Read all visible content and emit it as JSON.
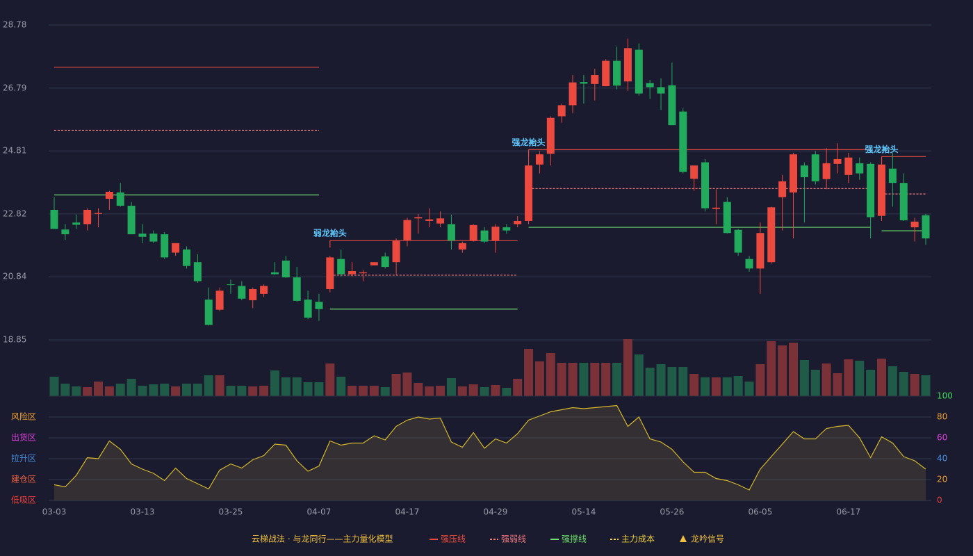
{
  "chart_data": [
    {
      "type": "candlestick",
      "x": [
        "03-03",
        null,
        null,
        null,
        null,
        null,
        null,
        null,
        "03-13",
        null,
        null,
        null,
        null,
        null,
        null,
        null,
        "03-25",
        null,
        null,
        null,
        null,
        null,
        null,
        null,
        "04-07",
        null,
        null,
        null,
        null,
        null,
        null,
        null,
        "04-17",
        null,
        null,
        null,
        null,
        null,
        null,
        null,
        "04-29",
        null,
        null,
        null,
        null,
        null,
        null,
        null,
        "05-14",
        null,
        null,
        null,
        null,
        null,
        null,
        null,
        "05-26",
        null,
        null,
        null,
        null,
        null,
        null,
        null,
        "06-05",
        null,
        null,
        null,
        null,
        null,
        null,
        null,
        "06-17",
        null,
        null,
        null,
        null,
        null,
        null,
        null
      ],
      "open": [
        22.95,
        22.33,
        22.55,
        22.5,
        22.82,
        23.3,
        23.5,
        23.08,
        22.2,
        22.2,
        22.18,
        21.6,
        21.7,
        21.3,
        20.12,
        19.8,
        20.6,
        20.55,
        20.1,
        20.3,
        20.98,
        21.35,
        20.82,
        20.12,
        20.05,
        20.45,
        21.4,
        20.92,
        20.95,
        21.2,
        21.48,
        21.3,
        22.0,
        22.68,
        22.6,
        22.52,
        22.5,
        21.7,
        21.98,
        22.3,
        21.98,
        22.4,
        22.5,
        22.6,
        24.38,
        24.72,
        25.9,
        26.25,
        26.98,
        26.92,
        26.85,
        27.65,
        27.0,
        28.0,
        26.95,
        26.82,
        26.88,
        26.05,
        23.93,
        24.45,
        22.98,
        23.2,
        22.32,
        21.4,
        21.1,
        21.3,
        23.35,
        23.5,
        24.35,
        24.7,
        23.92,
        24.4,
        24.05,
        24.42,
        24.4,
        22.76,
        24.25,
        23.8,
        22.4,
        22.78
      ],
      "high": [
        23.35,
        22.5,
        22.8,
        23.0,
        23.0,
        23.55,
        23.8,
        23.2,
        22.5,
        22.3,
        22.25,
        21.9,
        21.8,
        21.55,
        20.5,
        20.5,
        20.75,
        20.7,
        20.5,
        20.6,
        21.3,
        21.5,
        21.15,
        20.4,
        20.3,
        21.5,
        21.7,
        21.3,
        21.05,
        21.3,
        21.6,
        22.05,
        22.7,
        22.82,
        23.0,
        22.9,
        22.8,
        21.95,
        22.5,
        22.4,
        22.5,
        22.5,
        22.75,
        24.7,
        24.8,
        25.9,
        26.3,
        27.2,
        27.2,
        27.4,
        27.7,
        28.1,
        28.35,
        28.2,
        27.05,
        27.1,
        27.6,
        26.15,
        24.35,
        24.55,
        23.6,
        23.35,
        22.35,
        21.5,
        22.55,
        23.05,
        24.05,
        24.75,
        24.45,
        24.8,
        24.9,
        25.05,
        24.75,
        24.6,
        24.45,
        24.5,
        24.75,
        24.1,
        22.7,
        22.82
      ],
      "low": [
        22.35,
        22.0,
        22.35,
        22.3,
        22.4,
        22.95,
        23.05,
        22.2,
        21.9,
        21.9,
        21.4,
        21.5,
        21.1,
        20.65,
        19.3,
        19.75,
        20.3,
        20.1,
        19.85,
        20.2,
        20.9,
        20.8,
        20.05,
        19.5,
        19.45,
        20.35,
        20.85,
        20.85,
        20.7,
        21.2,
        21.1,
        20.9,
        21.8,
        22.2,
        22.4,
        22.4,
        21.7,
        21.6,
        21.95,
        21.9,
        21.6,
        22.2,
        22.4,
        22.5,
        24.1,
        24.35,
        25.7,
        26.0,
        26.3,
        26.4,
        26.85,
        26.75,
        26.7,
        26.55,
        26.45,
        26.1,
        25.7,
        24.1,
        23.55,
        22.9,
        22.5,
        22.2,
        21.5,
        21.0,
        20.3,
        21.25,
        22.3,
        22.05,
        22.55,
        23.75,
        23.6,
        24.1,
        23.8,
        23.9,
        22.05,
        22.6,
        23.05,
        22.6,
        21.95,
        21.85
      ],
      "close": [
        22.35,
        22.18,
        22.48,
        22.95,
        22.85,
        23.52,
        23.08,
        22.18,
        22.1,
        21.95,
        21.45,
        21.9,
        21.18,
        20.7,
        19.32,
        20.4,
        20.58,
        20.15,
        20.45,
        20.55,
        20.92,
        20.82,
        20.08,
        19.55,
        19.82,
        21.45,
        20.92,
        21.02,
        20.98,
        21.3,
        21.15,
        21.98,
        22.63,
        22.72,
        22.65,
        22.68,
        21.98,
        21.9,
        22.47,
        21.95,
        22.42,
        22.3,
        22.6,
        24.35,
        24.7,
        25.85,
        26.25,
        26.97,
        26.93,
        27.2,
        27.65,
        26.87,
        28.05,
        26.62,
        26.82,
        26.62,
        25.62,
        24.15,
        24.35,
        23.0,
        23.02,
        22.22,
        21.6,
        21.1,
        22.22,
        23.03,
        23.85,
        24.7,
        23.98,
        23.85,
        24.42,
        24.55,
        24.6,
        24.1,
        22.72,
        24.38,
        23.8,
        22.62,
        22.58,
        22.05
      ],
      "up_color": "#ec4a3f",
      "down_color": "#22ab5c",
      "ylim": [
        18.85,
        28.78
      ],
      "yticks": [
        28.78,
        26.79,
        24.81,
        22.82,
        20.84,
        18.85
      ],
      "grid": true,
      "levels": [
        {
          "start": 0,
          "end": 24,
          "resistance": 27.45,
          "pivot": 25.46,
          "support": 23.42
        },
        {
          "start": 25,
          "end": 42,
          "resistance": 21.98,
          "pivot": 20.89,
          "support": 19.82,
          "signal": "弱龙抬头"
        },
        {
          "start": 43,
          "end": 74,
          "resistance": 24.85,
          "pivot": 23.62,
          "support": 22.4,
          "signal": "强龙抬头"
        },
        {
          "start": 75,
          "end": 79,
          "resistance": 24.63,
          "pivot": 23.45,
          "support": 22.29,
          "signal": "强龙抬头"
        }
      ]
    },
    {
      "type": "bar",
      "values": [
        28,
        18,
        14,
        13,
        21,
        14,
        18,
        25,
        15,
        17,
        18,
        14,
        18,
        18,
        30,
        30,
        15,
        15,
        14,
        15,
        37,
        27,
        27,
        20,
        20,
        47,
        28,
        15,
        15,
        15,
        13,
        32,
        34,
        19,
        14,
        15,
        26,
        14,
        17,
        13,
        16,
        12,
        25,
        68,
        50,
        62,
        48,
        48,
        48,
        48,
        48,
        48,
        82,
        60,
        41,
        46,
        42,
        42,
        32,
        27,
        27,
        27,
        29,
        21,
        46,
        79,
        73,
        77,
        52,
        38,
        47,
        33,
        53,
        51,
        38,
        54,
        43,
        35,
        32,
        30
      ],
      "up_color": "#7a3238",
      "down_color": "#1f5b47"
    },
    {
      "type": "area",
      "values": [
        15,
        13,
        24,
        41,
        40,
        57,
        49,
        35,
        30,
        26,
        19,
        31,
        21,
        16,
        11,
        29,
        35,
        31,
        39,
        43,
        54,
        53,
        38,
        28,
        33,
        57,
        53,
        55,
        55,
        62,
        58,
        71,
        77,
        80,
        78,
        79,
        56,
        51,
        65,
        50,
        59,
        55,
        64,
        77,
        81,
        85,
        87,
        89,
        88,
        89,
        90,
        91,
        71,
        80,
        59,
        56,
        49,
        37,
        27,
        27,
        21,
        19,
        15,
        10,
        30,
        42,
        54,
        66,
        59,
        59,
        69,
        71,
        72,
        60,
        41,
        61,
        55,
        42,
        38,
        30
      ],
      "color": "#d6b82c",
      "ylim": [
        0,
        100
      ],
      "yticks": [
        100,
        80,
        60,
        40,
        20,
        0
      ],
      "ytick_colors": [
        "#3fe05a",
        "#f0a030",
        "#e040e0",
        "#4a90e2",
        "#f0a030",
        "#e84040"
      ],
      "zones": [
        {
          "label": "风险区",
          "value": 80,
          "color": "#f0a030"
        },
        {
          "label": "出货区",
          "value": 60,
          "color": "#e040e0"
        },
        {
          "label": "拉升区",
          "value": 40,
          "color": "#4a90e2"
        },
        {
          "label": "建仓区",
          "value": 20,
          "color": "#ec6040"
        },
        {
          "label": "低吸区",
          "value": 0,
          "color": "#e84040"
        }
      ]
    }
  ],
  "legend": {
    "title": "云梯战法 · 与龙同行——主力量化模型",
    "title_color": "#f0c040",
    "items": [
      {
        "name": "强压线",
        "color": "#ec4a3f",
        "style": "solid"
      },
      {
        "name": "强弱线",
        "color": "#f07a80",
        "style": "dashed"
      },
      {
        "name": "强撑线",
        "color": "#6de06d",
        "style": "solid"
      },
      {
        "name": "主力成本",
        "color": "#f0d040",
        "style": "dashed"
      },
      {
        "name": "龙吟信号",
        "color": "#f0c040",
        "style": "triangle"
      }
    ]
  }
}
